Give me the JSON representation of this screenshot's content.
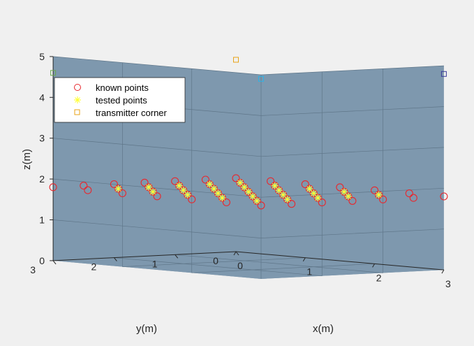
{
  "chart_data": {
    "type": "scatter",
    "title": "",
    "xlabel": "x(m)",
    "ylabel": "y(m)",
    "zlabel": "z(m)",
    "xlim": [
      0,
      3
    ],
    "ylim": [
      0,
      3
    ],
    "zlim": [
      0,
      5
    ],
    "xticks": [
      "0",
      "1",
      "2",
      "3"
    ],
    "yticks": [
      "0",
      "1",
      "2",
      "3"
    ],
    "zticks": [
      "0",
      "1",
      "2",
      "3",
      "4",
      "5"
    ],
    "grid": true,
    "legend_position": "top-left",
    "colors": {
      "background": "#f0f0f0",
      "pane": "#7e98ae",
      "grid": "#5f7689",
      "known": "#e8282e",
      "tested": "#ffff33",
      "corner_1": "#6aa84f",
      "corner_2": "#2ab3e8",
      "corner_3": "#e8a317",
      "corner_4": "#3a3a9a"
    },
    "legend": [
      {
        "label": "known points",
        "marker": "circle",
        "color": "#e8282e"
      },
      {
        "label": "tested points",
        "marker": "asterisk",
        "color": "#ffff33"
      },
      {
        "label": "transmitter corner",
        "marker": "square",
        "color": "#e8a317"
      }
    ],
    "series": [
      {
        "name": "known points",
        "marker": "circle",
        "points": [
          [
            0.0,
            3.0,
            1.8
          ],
          [
            0.5,
            3.0,
            1.8
          ],
          [
            1.0,
            3.0,
            1.8
          ],
          [
            1.5,
            3.0,
            1.8
          ],
          [
            2.0,
            3.0,
            1.8
          ],
          [
            2.5,
            3.0,
            1.8
          ],
          [
            3.0,
            3.0,
            1.8
          ],
          [
            0.0,
            2.5,
            1.8
          ],
          [
            0.5,
            2.5,
            1.8
          ],
          [
            1.0,
            2.5,
            1.8
          ],
          [
            1.5,
            2.5,
            1.8
          ],
          [
            2.0,
            2.5,
            1.8
          ],
          [
            2.5,
            2.5,
            1.8
          ],
          [
            3.0,
            2.5,
            1.8
          ],
          [
            0.0,
            2.0,
            1.8
          ],
          [
            0.5,
            2.0,
            1.8
          ],
          [
            1.0,
            2.0,
            1.8
          ],
          [
            1.5,
            2.0,
            1.8
          ],
          [
            2.0,
            2.0,
            1.8
          ],
          [
            2.5,
            2.0,
            1.8
          ],
          [
            3.0,
            2.0,
            1.8
          ],
          [
            0.0,
            1.5,
            1.8
          ],
          [
            0.5,
            1.5,
            1.8
          ],
          [
            1.0,
            1.5,
            1.8
          ],
          [
            1.5,
            1.5,
            1.8
          ],
          [
            2.0,
            1.5,
            1.8
          ],
          [
            2.5,
            1.5,
            1.8
          ],
          [
            3.0,
            1.5,
            1.8
          ],
          [
            0.0,
            1.0,
            1.8
          ],
          [
            0.5,
            1.0,
            1.8
          ],
          [
            1.0,
            1.0,
            1.8
          ],
          [
            1.5,
            1.0,
            1.8
          ],
          [
            2.0,
            1.0,
            1.8
          ],
          [
            2.5,
            1.0,
            1.8
          ],
          [
            3.0,
            1.0,
            1.8
          ],
          [
            0.0,
            0.5,
            1.8
          ],
          [
            0.5,
            0.5,
            1.8
          ],
          [
            1.0,
            0.5,
            1.8
          ],
          [
            1.5,
            0.5,
            1.8
          ],
          [
            2.0,
            0.5,
            1.8
          ],
          [
            2.5,
            0.5,
            1.8
          ],
          [
            3.0,
            0.5,
            1.8
          ],
          [
            0.0,
            0.0,
            1.8
          ],
          [
            0.5,
            0.0,
            1.8
          ],
          [
            1.0,
            0.0,
            1.8
          ],
          [
            1.5,
            0.0,
            1.8
          ],
          [
            2.0,
            0.0,
            1.8
          ],
          [
            2.5,
            0.0,
            1.8
          ],
          [
            3.0,
            0.0,
            1.8
          ]
        ]
      },
      {
        "name": "tested points",
        "marker": "asterisk",
        "points": [
          [
            0.5,
            2.5,
            1.8
          ],
          [
            1.0,
            2.5,
            1.8
          ],
          [
            1.5,
            2.5,
            1.8
          ],
          [
            2.0,
            2.5,
            1.8
          ],
          [
            2.5,
            2.5,
            1.8
          ],
          [
            0.5,
            2.0,
            1.8
          ],
          [
            1.0,
            2.0,
            1.8
          ],
          [
            1.5,
            2.0,
            1.8
          ],
          [
            2.0,
            2.0,
            1.8
          ],
          [
            2.5,
            2.0,
            1.8
          ],
          [
            0.5,
            1.5,
            1.8
          ],
          [
            1.0,
            1.5,
            1.8
          ],
          [
            1.5,
            1.5,
            1.8
          ],
          [
            2.0,
            1.5,
            1.8
          ],
          [
            2.5,
            1.5,
            1.8
          ],
          [
            0.5,
            1.0,
            1.8
          ],
          [
            1.0,
            1.0,
            1.8
          ],
          [
            1.5,
            1.0,
            1.8
          ],
          [
            2.0,
            1.0,
            1.8
          ],
          [
            2.5,
            1.0,
            1.8
          ],
          [
            0.5,
            0.5,
            1.8
          ],
          [
            1.0,
            0.5,
            1.8
          ],
          [
            1.5,
            0.5,
            1.8
          ],
          [
            2.0,
            0.5,
            1.8
          ],
          [
            2.5,
            0.5,
            1.8
          ]
        ]
      },
      {
        "name": "transmitter corner",
        "marker": "square",
        "points": [
          [
            0.0,
            3.0,
            4.6,
            "#6aa84f"
          ],
          [
            3.0,
            3.0,
            4.9,
            "#2ab3e8"
          ],
          [
            0.0,
            0.0,
            4.7,
            "#e8a317"
          ],
          [
            3.0,
            0.0,
            4.8,
            "#3a3a9a"
          ]
        ]
      }
    ]
  }
}
